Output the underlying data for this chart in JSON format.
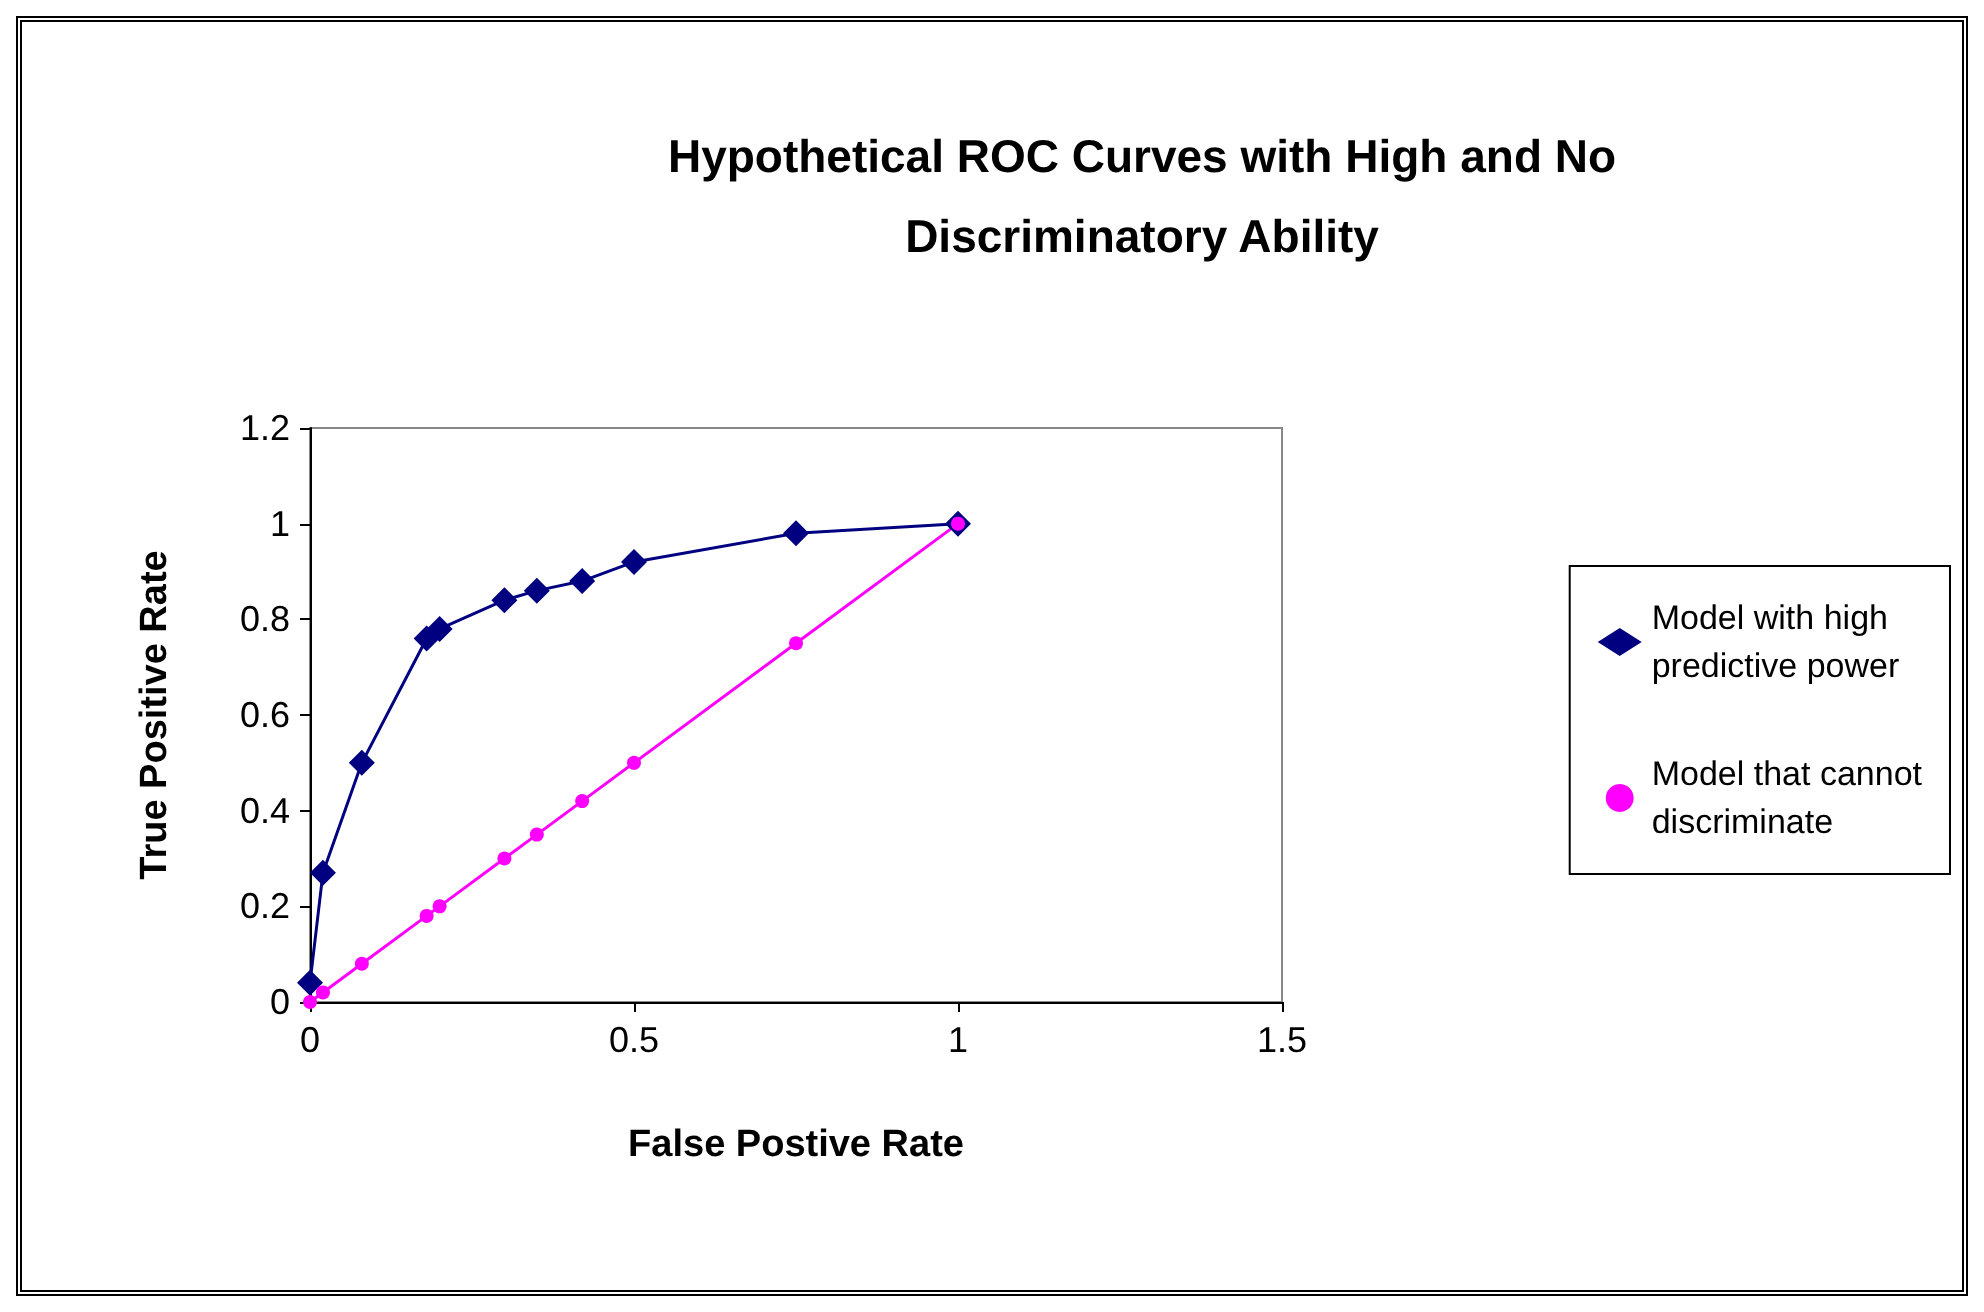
{
  "chart_data": {
    "type": "line",
    "title": "Hypothetical ROC Curves with High and No\nDiscriminatory Ability",
    "xlabel": "False Postive Rate",
    "ylabel": "True Positive Rate",
    "xlim": [
      0,
      1.5
    ],
    "xticks": [
      0,
      0.5,
      1,
      1.5
    ],
    "ylim": [
      0,
      1.2
    ],
    "yticks": [
      0,
      0.2,
      0.4,
      0.6,
      0.8,
      1,
      1.2
    ],
    "grid": false,
    "legend": "right",
    "series": [
      {
        "name": "Model with high\npredictive power",
        "color": "#000080",
        "marker": "diamond",
        "x": [
          0,
          0.02,
          0.08,
          0.18,
          0.2,
          0.3,
          0.35,
          0.42,
          0.5,
          0.75,
          1
        ],
        "values": [
          0.04,
          0.27,
          0.5,
          0.76,
          0.78,
          0.84,
          0.86,
          0.88,
          0.92,
          0.98,
          1
        ]
      },
      {
        "name": "Model that cannot\ndiscriminate",
        "color": "#ff00ff",
        "marker": "circle",
        "x": [
          0,
          0.02,
          0.08,
          0.18,
          0.2,
          0.3,
          0.35,
          0.42,
          0.5,
          0.75,
          1
        ],
        "values": [
          0,
          0.02,
          0.08,
          0.18,
          0.2,
          0.3,
          0.35,
          0.42,
          0.5,
          0.75,
          1
        ]
      }
    ]
  }
}
